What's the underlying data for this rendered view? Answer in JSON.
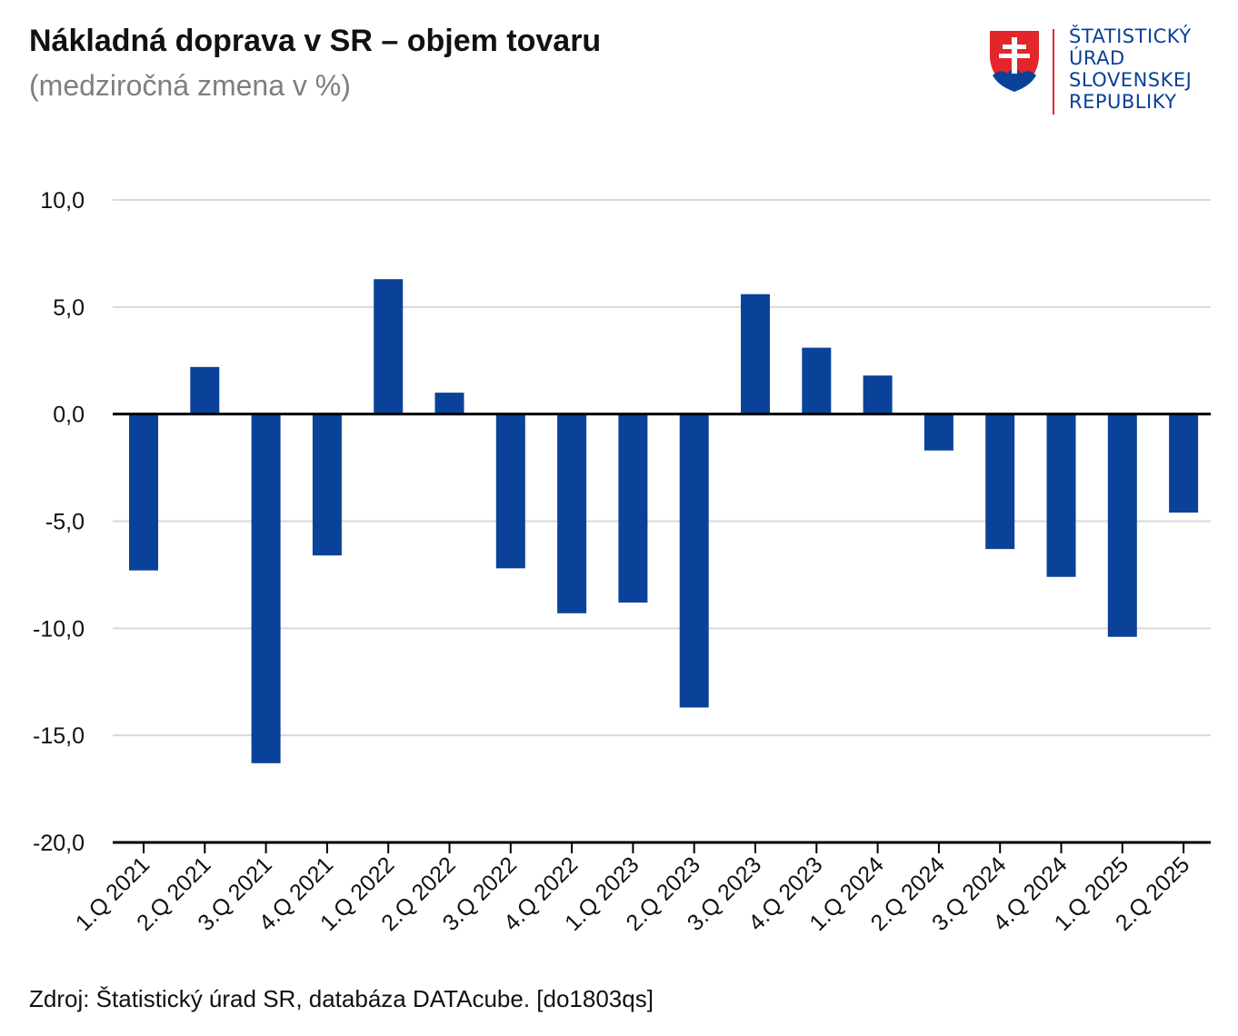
{
  "header": {
    "title": "Nákladná doprava v SR – objem tovaru",
    "subtitle": "(medziročná zmena v %)"
  },
  "logo": {
    "line1": "ŠTATISTICKÝ",
    "line2": "ÚRAD",
    "line3": "SLOVENSKEJ",
    "line4": "REPUBLIKY",
    "brand_color": "#0b3f99",
    "accent_color": "#e3262b"
  },
  "footer": {
    "source": "Zdroj: Štatistický úrad SR, databáza DATAcube. [do1803qs]"
  },
  "colors": {
    "bar": "#0b4299",
    "grid": "#d9d9d9",
    "axis": "#000000"
  },
  "chart_data": {
    "type": "bar",
    "title": "Nákladná doprava v SR – objem tovaru",
    "subtitle": "(medziročná zmena v %)",
    "xlabel": "",
    "ylabel": "",
    "ylim": [
      -20,
      10
    ],
    "yticks": [
      10,
      5,
      0,
      -5,
      -10,
      -15,
      -20
    ],
    "ytick_labels": [
      "10,0",
      "5,0",
      "0,0",
      "-5,0",
      "-10,0",
      "-15,0",
      "-20,0"
    ],
    "grid": true,
    "legend": "none",
    "categories": [
      "1.Q 2021",
      "2.Q 2021",
      "3.Q 2021",
      "4.Q 2021",
      "1.Q 2022",
      "2.Q 2022",
      "3.Q 2022",
      "4.Q 2022",
      "1.Q 2023",
      "2.Q 2023",
      "3.Q 2023",
      "4.Q 2023",
      "1.Q 2024",
      "2.Q 2024",
      "3.Q 2024",
      "4.Q 2024",
      "1.Q 2025",
      "2.Q 2025"
    ],
    "values": [
      -7.3,
      2.2,
      -16.3,
      -6.6,
      6.3,
      1.0,
      -7.2,
      -9.3,
      -8.8,
      -13.7,
      5.6,
      3.1,
      1.8,
      -1.7,
      -6.3,
      -7.6,
      -10.4,
      -4.6
    ]
  }
}
